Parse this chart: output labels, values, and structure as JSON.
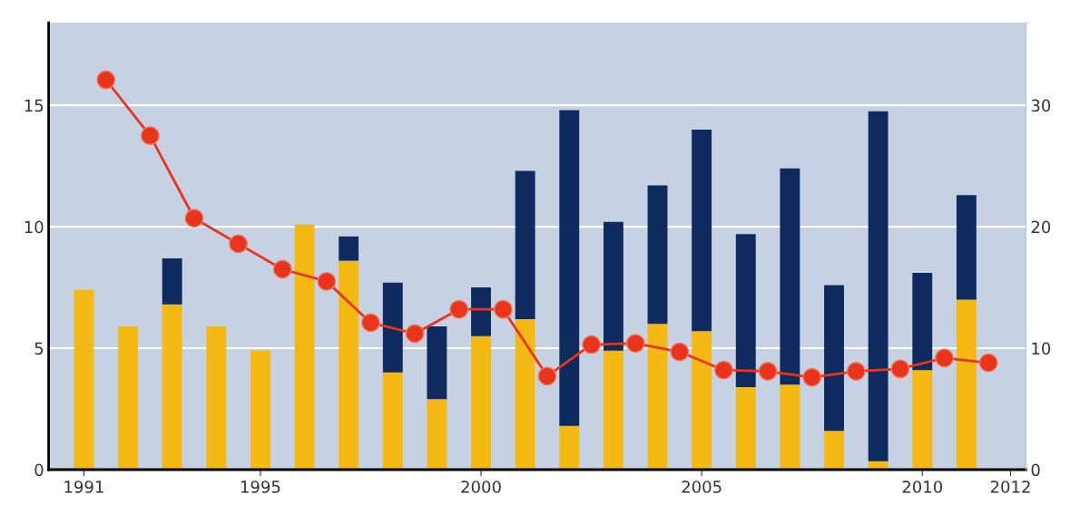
{
  "chart_data": {
    "type": "bar",
    "stacked": true,
    "x": [
      1991,
      1992,
      1993,
      1994,
      1995,
      1996,
      1997,
      1998,
      1999,
      2000,
      2001,
      2002,
      2003,
      2004,
      2005,
      2006,
      2007,
      2008,
      2009,
      2010,
      2011
    ],
    "series": [
      {
        "color": "#f5b914",
        "values": [
          7.4,
          5.9,
          6.8,
          5.9,
          4.9,
          10.1,
          8.6,
          4.0,
          2.9,
          5.5,
          6.2,
          1.8,
          4.9,
          6.0,
          5.7,
          3.4,
          3.5,
          1.6,
          0.35,
          4.1,
          7.0
        ]
      },
      {
        "color": "#0f2a5f",
        "values": [
          0,
          0,
          1.9,
          0,
          0,
          0,
          1.0,
          3.7,
          3.0,
          2.0,
          6.1,
          13.0,
          5.3,
          5.7,
          8.3,
          6.3,
          8.9,
          6.0,
          14.4,
          4.0,
          4.3
        ]
      },
      {
        "type": "line",
        "axis": "y2",
        "color": "#e8341c",
        "marker": "circle",
        "x": [
          1991.5,
          1992.5,
          1993.5,
          1994.5,
          1995.5,
          1996.5,
          1997.5,
          1998.5,
          1999.5,
          2000.5,
          2001.5,
          2002.5,
          2003.5,
          2004.5,
          2005.5,
          2006.5,
          2007.5,
          2008.5,
          2009.5,
          2010.5,
          2011.5
        ],
        "values": [
          32.1,
          27.5,
          20.7,
          18.6,
          16.5,
          15.5,
          12.1,
          11.2,
          13.2,
          13.2,
          7.7,
          10.3,
          10.4,
          9.7,
          8.2,
          8.1,
          7.6,
          8.1,
          8.3,
          9.2,
          8.8
        ]
      }
    ],
    "xlim": [
      1990.2,
      2012.35
    ],
    "xticks": [
      1991,
      1995,
      2000,
      2005,
      2010,
      2012
    ],
    "ylim": [
      0,
      18.4
    ],
    "yticks": [
      0,
      5,
      10,
      15
    ],
    "y2lim": [
      0,
      36.8
    ],
    "y2ticks": [
      0,
      10,
      20,
      30
    ],
    "grid": "y"
  }
}
